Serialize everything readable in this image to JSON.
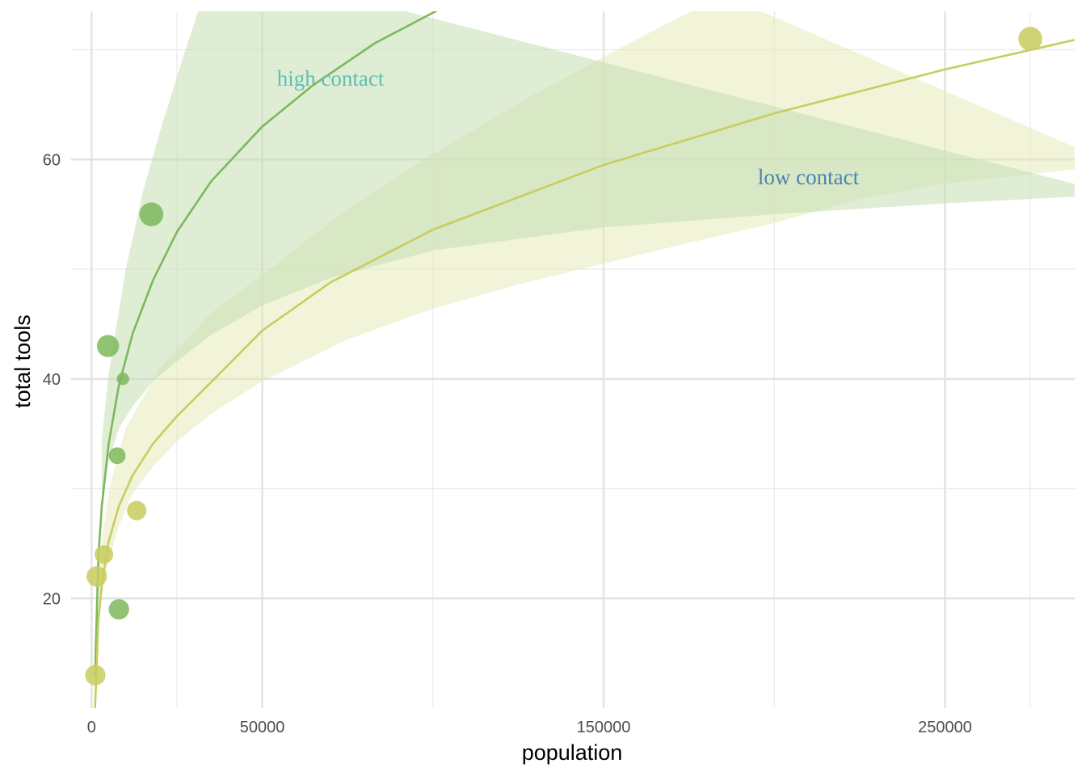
{
  "chart_data": {
    "type": "scatter",
    "xlabel": "population",
    "ylabel": "total tools",
    "xlim": [
      -6000,
      288000
    ],
    "ylim": [
      10,
      73.5
    ],
    "x_ticks_major": [
      0,
      50000,
      150000,
      250000
    ],
    "x_ticks_minor": [
      25000,
      100000,
      200000,
      275000
    ],
    "y_ticks_major": [
      20,
      40,
      60
    ],
    "y_ticks_minor": [
      30,
      50,
      70
    ],
    "grid": true,
    "legend": "none",
    "series": [
      {
        "contact": "high",
        "color": "#7cb85c",
        "points": [
          {
            "x": 8000,
            "y": 19,
            "size": 0.6
          },
          {
            "x": 4800,
            "y": 43,
            "size": 0.7
          },
          {
            "x": 9200,
            "y": 40,
            "size": 0.15
          },
          {
            "x": 7500,
            "y": 33,
            "size": 0.4
          },
          {
            "x": 17500,
            "y": 55,
            "size": 0.8
          }
        ],
        "curve": [
          {
            "x": 1000,
            "y": 12.9
          },
          {
            "x": 2000,
            "y": 23.9
          },
          {
            "x": 3000,
            "y": 28.4
          },
          {
            "x": 5000,
            "y": 34.1
          },
          {
            "x": 8000,
            "y": 39.4
          },
          {
            "x": 12000,
            "y": 44.1
          },
          {
            "x": 18000,
            "y": 49.0
          },
          {
            "x": 25000,
            "y": 53.4
          },
          {
            "x": 35000,
            "y": 58.0
          },
          {
            "x": 50000,
            "y": 63.0
          },
          {
            "x": 65000,
            "y": 66.8
          },
          {
            "x": 83000,
            "y": 70.6
          },
          {
            "x": 110000,
            "y": 75.0
          }
        ],
        "band_upper": [
          {
            "x": 3000,
            "y": 34.5
          },
          {
            "x": 5000,
            "y": 40.5
          },
          {
            "x": 10000,
            "y": 50.0
          },
          {
            "x": 15000,
            "y": 57.0
          },
          {
            "x": 20000,
            "y": 62.5
          },
          {
            "x": 27000,
            "y": 69.5
          },
          {
            "x": 36000,
            "y": 78.0
          }
        ],
        "band_lower": [
          {
            "x": 300000,
            "y": 56.8
          },
          {
            "x": 250000,
            "y": 56.0
          },
          {
            "x": 200000,
            "y": 55.0
          },
          {
            "x": 150000,
            "y": 53.8
          },
          {
            "x": 100000,
            "y": 51.7
          },
          {
            "x": 70000,
            "y": 49.2
          },
          {
            "x": 50000,
            "y": 46.7
          },
          {
            "x": 35000,
            "y": 44.0
          },
          {
            "x": 25000,
            "y": 41.6
          },
          {
            "x": 18000,
            "y": 39.8
          },
          {
            "x": 12000,
            "y": 37.5
          },
          {
            "x": 8000,
            "y": 35.5
          },
          {
            "x": 5000,
            "y": 32.5
          },
          {
            "x": 3000,
            "y": 28.5
          }
        ],
        "label": "high contact",
        "label_color": "#5fbfb3",
        "label_x": 70000,
        "label_y": 67.4
      },
      {
        "contact": "low",
        "color": "#c8cd5e",
        "points": [
          {
            "x": 1100,
            "y": 13,
            "size": 0.6
          },
          {
            "x": 1500,
            "y": 22,
            "size": 0.6
          },
          {
            "x": 3600,
            "y": 24,
            "size": 0.5
          },
          {
            "x": 13200,
            "y": 28,
            "size": 0.55
          },
          {
            "x": 275000,
            "y": 71,
            "size": 0.8
          }
        ],
        "curve": [
          {
            "x": 1000,
            "y": 10.0
          },
          {
            "x": 2000,
            "y": 18.0
          },
          {
            "x": 3000,
            "y": 21.3
          },
          {
            "x": 5000,
            "y": 25.2
          },
          {
            "x": 8000,
            "y": 28.4
          },
          {
            "x": 12000,
            "y": 31.2
          },
          {
            "x": 18000,
            "y": 34.1
          },
          {
            "x": 25000,
            "y": 36.6
          },
          {
            "x": 35000,
            "y": 39.7
          },
          {
            "x": 50000,
            "y": 44.4
          },
          {
            "x": 70000,
            "y": 48.8
          },
          {
            "x": 100000,
            "y": 53.6
          },
          {
            "x": 150000,
            "y": 59.5
          },
          {
            "x": 200000,
            "y": 64.2
          },
          {
            "x": 250000,
            "y": 68.2
          },
          {
            "x": 288000,
            "y": 70.9
          }
        ],
        "band_upper": [
          {
            "x": 2000,
            "y": 22.5
          },
          {
            "x": 5000,
            "y": 29.8
          },
          {
            "x": 10000,
            "y": 35.5
          },
          {
            "x": 20000,
            "y": 41.0
          },
          {
            "x": 35000,
            "y": 46.0
          },
          {
            "x": 50000,
            "y": 49.5
          },
          {
            "x": 75000,
            "y": 55.5
          },
          {
            "x": 100000,
            "y": 60.5
          },
          {
            "x": 130000,
            "y": 66.0
          },
          {
            "x": 160000,
            "y": 71.0
          },
          {
            "x": 185000,
            "y": 75.0
          }
        ],
        "band_lower": [
          {
            "x": 300000,
            "y": 59.5
          },
          {
            "x": 250000,
            "y": 57.8
          },
          {
            "x": 225000,
            "y": 56.4
          },
          {
            "x": 200000,
            "y": 54.2
          },
          {
            "x": 175000,
            "y": 52.4
          },
          {
            "x": 150000,
            "y": 50.5
          },
          {
            "x": 125000,
            "y": 48.6
          },
          {
            "x": 100000,
            "y": 46.4
          },
          {
            "x": 75000,
            "y": 43.6
          },
          {
            "x": 50000,
            "y": 39.8
          },
          {
            "x": 35000,
            "y": 36.8
          },
          {
            "x": 25000,
            "y": 34.3
          },
          {
            "x": 18000,
            "y": 32.0
          },
          {
            "x": 12000,
            "y": 29.5
          },
          {
            "x": 8000,
            "y": 26.6
          },
          {
            "x": 5000,
            "y": 23.5
          },
          {
            "x": 3000,
            "y": 20.0
          },
          {
            "x": 2000,
            "y": 17.0
          }
        ],
        "label": "low contact",
        "label_color": "#4a82b4",
        "label_x": 210000,
        "label_y": 58.4
      }
    ]
  }
}
